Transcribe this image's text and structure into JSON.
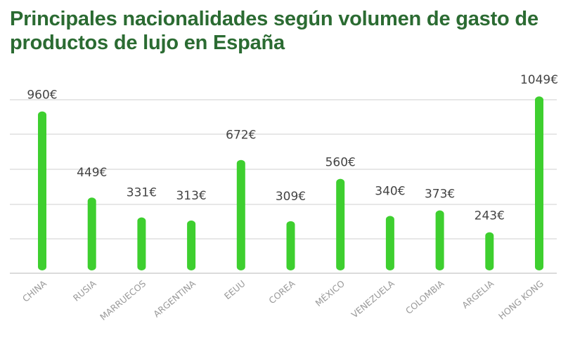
{
  "chart_data": {
    "type": "bar",
    "title": "Principales nacionalidades según volumen de gasto de productos de lujo en España",
    "categories": [
      "CHINA",
      "RUSIA",
      "MARRUECOS",
      "ARGENTINA",
      "EEUU",
      "COREA",
      "MÉXICO",
      "VENEZUELA",
      "COLOMBIA",
      "ARGELIA",
      "HONG KONG"
    ],
    "values": [
      960,
      449,
      331,
      313,
      672,
      309,
      560,
      340,
      373,
      243,
      1049
    ],
    "value_labels": [
      "960€",
      "449€",
      "331€",
      "313€",
      "672€",
      "309€",
      "560€",
      "340€",
      "373€",
      "243€",
      "1049€"
    ],
    "xlabel": "",
    "ylabel": "",
    "grid": true,
    "bar_color": "#3ecf2f",
    "grid_color": "#cfcfcf"
  }
}
